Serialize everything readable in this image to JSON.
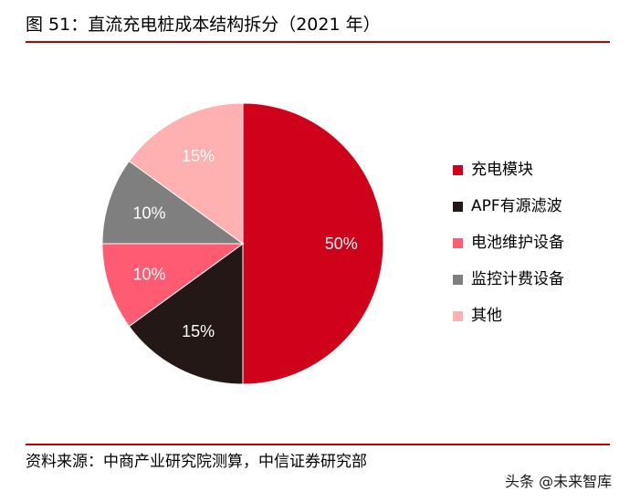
{
  "title": "图 51：直流充电桩成本结构拆分（2021 年）",
  "source": "资料来源：中商产业研究院测算，中信证券研究部",
  "watermark": "头条 @未来智库",
  "chart_data": {
    "type": "pie",
    "title": "",
    "legend_position": "right",
    "series": [
      {
        "name": "充电模块",
        "value": 50,
        "label": "50%",
        "color": "#d0021b",
        "label_color": "#ffffff"
      },
      {
        "name": "APF有源滤波",
        "value": 15,
        "label": "15%",
        "color": "#231815",
        "label_color": "#ffffff"
      },
      {
        "name": "电池维护设备",
        "value": 10,
        "label": "10%",
        "color": "#ff5b72",
        "label_color": "#ffffff"
      },
      {
        "name": "监控计费设备",
        "value": 10,
        "label": "10%",
        "color": "#7f7f7f",
        "label_color": "#ffffff"
      },
      {
        "name": "其他",
        "value": 15,
        "label": "15%",
        "color": "#ffb0b0",
        "label_color": "#ffffff"
      }
    ]
  }
}
